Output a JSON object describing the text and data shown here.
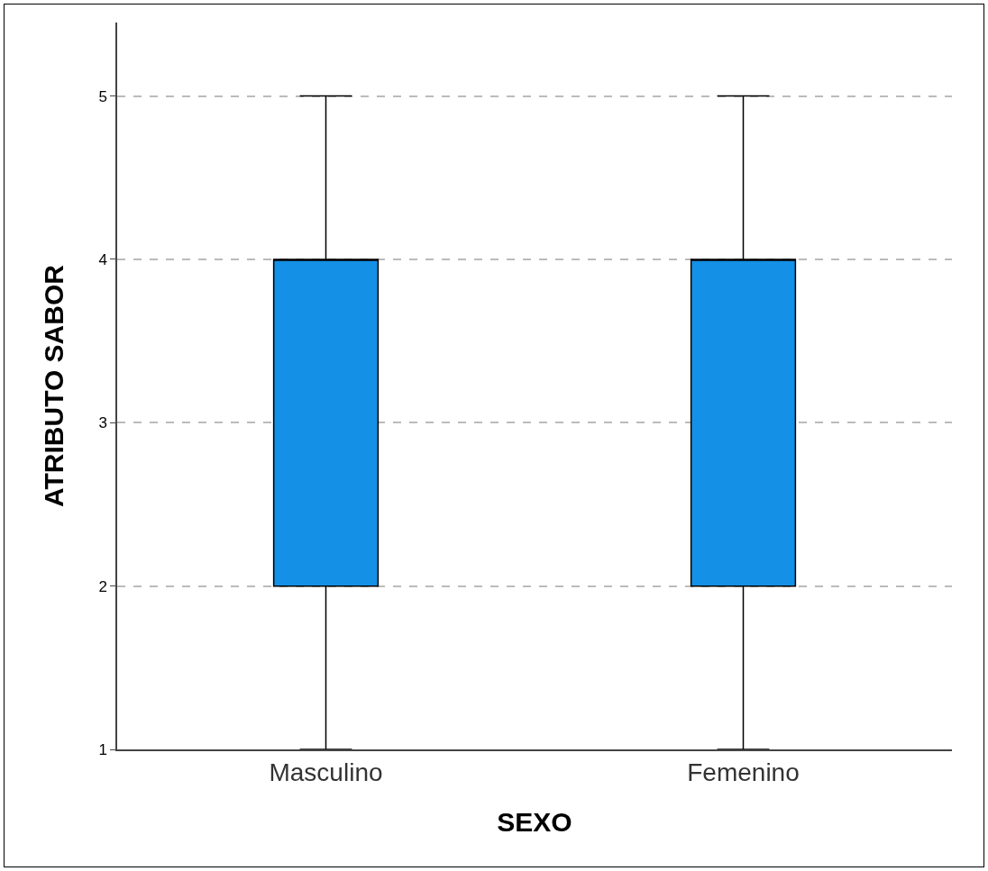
{
  "chart_data": {
    "type": "box",
    "xlabel": "SEXO",
    "ylabel": "ATRIBUTO SABOR",
    "categories": [
      "Masculino",
      "Femenino"
    ],
    "color": "#1490e6",
    "boxes": [
      {
        "low": 1,
        "q1": 2,
        "median": 4,
        "q3": 4,
        "high": 5
      },
      {
        "low": 1,
        "q1": 2,
        "median": 4,
        "q3": 4,
        "high": 5
      }
    ],
    "ylim": [
      1,
      5.45
    ],
    "yticks": [
      1,
      2,
      3,
      4,
      5
    ],
    "grid": "y"
  }
}
